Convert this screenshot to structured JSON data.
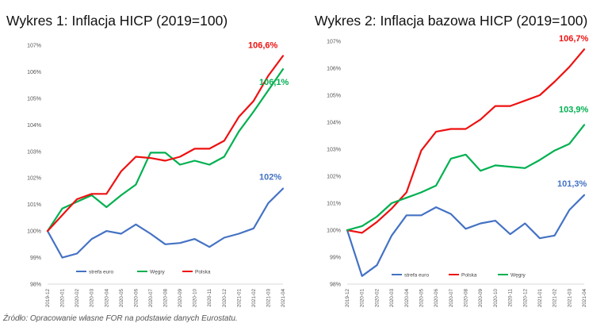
{
  "chart_data": [
    {
      "type": "line",
      "title": "Wykres 1: Inflacja HICP (2019=100)",
      "x": [
        "2019-12",
        "2020-01",
        "2020-02",
        "2020-03",
        "2020-04",
        "2020-05",
        "2020-06",
        "2020-07",
        "2020-08",
        "2020-09",
        "2020-10",
        "2020-11",
        "2020-12",
        "2021-01",
        "2021-02",
        "2021-03",
        "2021-04"
      ],
      "ylim": [
        98,
        107
      ],
      "yticks": [
        {
          "value": 98,
          "label": "98%"
        },
        {
          "value": 99,
          "label": "99%"
        },
        {
          "value": 100,
          "label": "100%"
        },
        {
          "value": 101,
          "label": "101%"
        },
        {
          "value": 102,
          "label": "102%"
        },
        {
          "value": 103,
          "label": "103%"
        },
        {
          "value": 104,
          "label": "104%"
        },
        {
          "value": 105,
          "label": "105%"
        },
        {
          "value": 106,
          "label": "106%"
        },
        {
          "value": 107,
          "label": "107%"
        }
      ],
      "series": [
        {
          "name": "strefa euro",
          "color": "#4472c4",
          "values": [
            100.0,
            99.0,
            99.15,
            99.7,
            100.0,
            99.9,
            100.25,
            99.9,
            99.5,
            99.55,
            99.7,
            99.4,
            99.75,
            99.9,
            100.1,
            101.05,
            101.6
          ]
        },
        {
          "name": "Węgry",
          "color": "#00b050",
          "values": [
            100.0,
            100.85,
            101.1,
            101.35,
            100.9,
            101.35,
            101.75,
            102.95,
            102.95,
            102.5,
            102.65,
            102.5,
            102.8,
            103.75,
            104.5,
            105.3,
            106.1
          ]
        },
        {
          "name": "Polska",
          "color": "#ee1111",
          "values": [
            100.0,
            100.6,
            101.2,
            101.4,
            101.4,
            102.25,
            102.8,
            102.75,
            102.65,
            102.8,
            103.1,
            103.1,
            103.4,
            104.3,
            104.9,
            105.85,
            106.6
          ]
        }
      ],
      "annotations": [
        {
          "text": "106,6%",
          "color": "#ee1111"
        },
        {
          "text": "106,1%",
          "color": "#00b050"
        },
        {
          "text": "102%",
          "color": "#4472c4"
        }
      ],
      "legend": [
        "strefa euro",
        "Węgry",
        "Polska"
      ]
    },
    {
      "type": "line",
      "title": "Wykres 2: Inflacja bazowa HICP (2019=100)",
      "x": [
        "2019-12",
        "2020-01",
        "2020-02",
        "2020-03",
        "2020-04",
        "2020-05",
        "2020-06",
        "2020-07",
        "2020-08",
        "2020-09",
        "2020-10",
        "2020-11",
        "2020-12",
        "2021-01",
        "2021-02",
        "2021-03",
        "2021-04"
      ],
      "ylim": [
        98,
        107
      ],
      "yticks": [
        {
          "value": 98,
          "label": "98%"
        },
        {
          "value": 99,
          "label": "99%"
        },
        {
          "value": 100,
          "label": "100%"
        },
        {
          "value": 101,
          "label": "101%"
        },
        {
          "value": 102,
          "label": "102%"
        },
        {
          "value": 103,
          "label": "103%"
        },
        {
          "value": 104,
          "label": "104%"
        },
        {
          "value": 105,
          "label": "105%"
        },
        {
          "value": 106,
          "label": "106%"
        },
        {
          "value": 107,
          "label": "107%"
        }
      ],
      "series": [
        {
          "name": "strefa euro",
          "color": "#4472c4",
          "values": [
            100.0,
            98.3,
            98.7,
            99.8,
            100.55,
            100.55,
            100.85,
            100.6,
            100.05,
            100.25,
            100.35,
            99.85,
            100.25,
            99.7,
            99.8,
            100.75,
            101.3
          ]
        },
        {
          "name": "Polska",
          "color": "#ee1111",
          "values": [
            100.0,
            99.9,
            100.3,
            100.8,
            101.4,
            102.95,
            103.65,
            103.75,
            103.75,
            104.1,
            104.6,
            104.6,
            104.8,
            105.0,
            105.5,
            106.05,
            106.7
          ]
        },
        {
          "name": "Węgry",
          "color": "#00b050",
          "values": [
            100.0,
            100.15,
            100.5,
            101.0,
            101.2,
            101.4,
            101.65,
            102.65,
            102.8,
            102.2,
            102.4,
            102.35,
            102.3,
            102.6,
            102.95,
            103.2,
            103.9
          ]
        }
      ],
      "annotations": [
        {
          "text": "106,7%",
          "color": "#ee1111"
        },
        {
          "text": "103,9%",
          "color": "#00b050"
        },
        {
          "text": "101,3%",
          "color": "#4472c4"
        }
      ],
      "legend": [
        "strefa euro",
        "Polska",
        "Węgry"
      ]
    }
  ],
  "source_note": "Źródło: Opracowanie własne FOR na podstawie danych Eurostatu."
}
